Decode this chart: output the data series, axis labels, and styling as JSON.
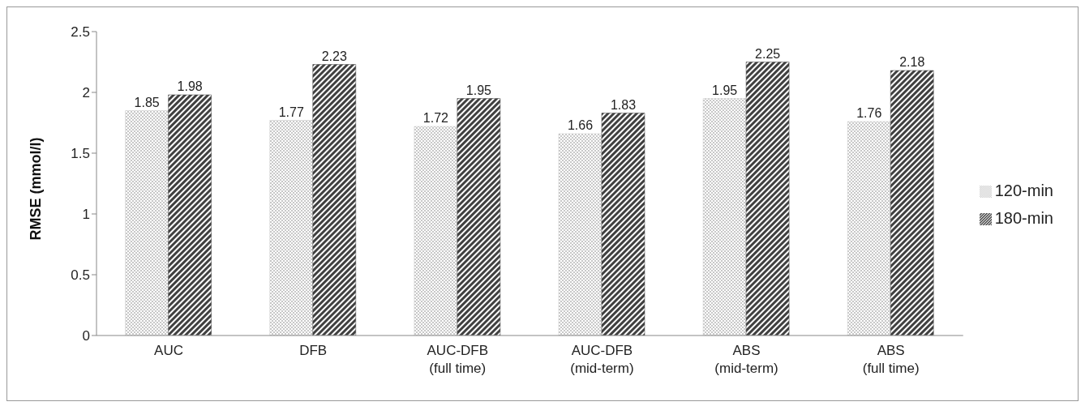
{
  "chart_data": {
    "type": "bar",
    "ylabel": "RMSE (mmol/l)",
    "categories": [
      "AUC",
      "DFB",
      "AUC-DFB (full time)",
      "AUC-DFB (mid-term)",
      "ABS (mid-term)",
      "ABS (full time)"
    ],
    "series": [
      {
        "name": "120-min",
        "color": "#c8c8c8",
        "values": [
          1.85,
          1.77,
          1.72,
          1.66,
          1.95,
          1.76
        ]
      },
      {
        "name": "180-min",
        "color": "#404040",
        "values": [
          1.98,
          2.23,
          1.95,
          1.83,
          2.25,
          2.18
        ]
      }
    ],
    "ylim": [
      0,
      2.5
    ],
    "yticks": [
      0,
      0.5,
      1,
      1.5,
      2,
      2.5
    ],
    "grid": false,
    "legend": "right",
    "data_labels": true
  }
}
